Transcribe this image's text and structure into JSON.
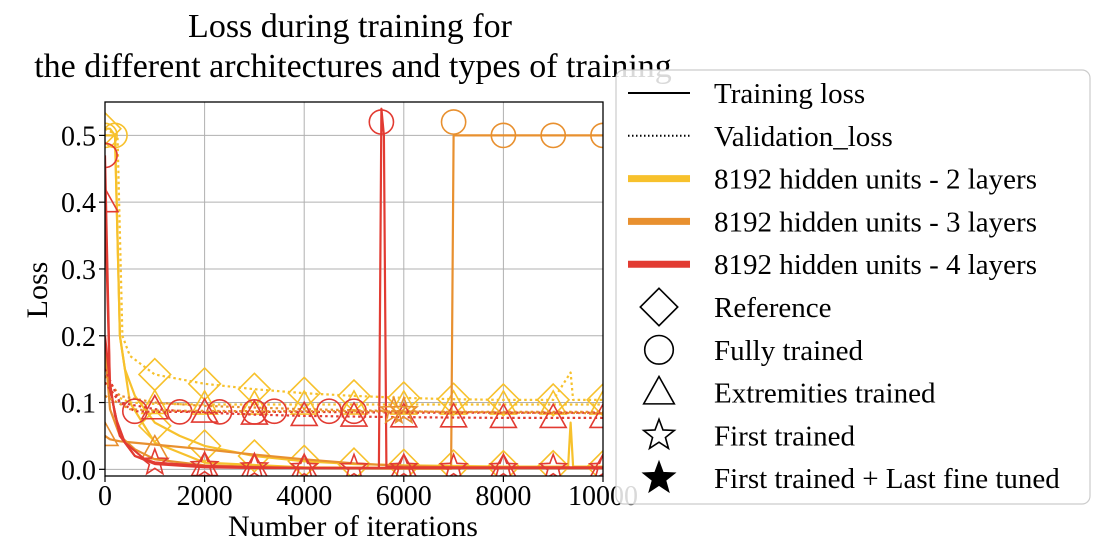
{
  "chart_data": {
    "type": "line",
    "title_line1": "Loss during training for",
    "title_line2": "the different architectures and types of training",
    "xlabel": "Number of iterations",
    "ylabel": "Loss",
    "xlim": [
      0,
      10000
    ],
    "ylim": [
      -0.01,
      0.55
    ],
    "x_ticks": [
      0,
      2000,
      4000,
      6000,
      8000,
      10000
    ],
    "x_tick_labels": [
      "0",
      "2000",
      "4000",
      "6000",
      "8000",
      "10000"
    ],
    "y_ticks": [
      0.0,
      0.1,
      0.2,
      0.3,
      0.4,
      0.5
    ],
    "y_tick_labels": [
      "0.0",
      "0.1",
      "0.2",
      "0.3",
      "0.4",
      "0.5"
    ],
    "grid": true,
    "legend_placement": "outside-right",
    "colors": {
      "2_layers": "#f7c12c",
      "3_layers": "#e8902f",
      "4_layers": "#e23b32"
    },
    "legend": [
      {
        "label": "Training loss",
        "kind": "line",
        "dash": "solid",
        "color": "#000000"
      },
      {
        "label": "Validation_loss",
        "kind": "line",
        "dash": "dotted",
        "color": "#000000"
      },
      {
        "label": "8192 hidden units - 2 layers",
        "kind": "thick",
        "color": "#f7c12c"
      },
      {
        "label": "8192 hidden units - 3 layers",
        "kind": "thick",
        "color": "#e8902f"
      },
      {
        "label": "8192 hidden units - 4 layers",
        "kind": "thick",
        "color": "#e23b32"
      },
      {
        "label": "Reference",
        "kind": "marker",
        "marker": "diamond"
      },
      {
        "label": "Fully trained",
        "kind": "marker",
        "marker": "circle"
      },
      {
        "label": "Extremities trained",
        "kind": "marker",
        "marker": "triangle"
      },
      {
        "label": "First trained",
        "kind": "marker",
        "marker": "star-open"
      },
      {
        "label": "First trained + Last fine tuned",
        "kind": "marker",
        "marker": "star-filled"
      }
    ],
    "series": [
      {
        "color_key": "2_layers",
        "marker": "diamond",
        "dash": "solid",
        "x": [
          0,
          100,
          200,
          300,
          400,
          600,
          1000,
          1500,
          2000,
          3000,
          4000,
          5000,
          6000,
          7000,
          8000,
          9000,
          9300,
          9350,
          9400,
          10000
        ],
        "y": [
          0.51,
          0.51,
          0.5,
          0.2,
          0.15,
          0.11,
          0.07,
          0.05,
          0.035,
          0.02,
          0.012,
          0.008,
          0.006,
          0.005,
          0.004,
          0.004,
          0.004,
          0.07,
          0.004,
          0.004
        ],
        "marker_x": [
          0,
          1000,
          2000,
          3000,
          4000,
          5000,
          6000,
          7000,
          8000,
          9000,
          10000
        ],
        "marker_y": [
          0.51,
          0.065,
          0.035,
          0.02,
          0.012,
          0.008,
          0.006,
          0.005,
          0.004,
          0.004,
          0.004
        ]
      },
      {
        "color_key": "2_layers",
        "marker": "diamond",
        "dash": "dotted",
        "x": [
          0,
          250,
          350,
          500,
          1000,
          2000,
          3000,
          4000,
          5000,
          6000,
          7000,
          8000,
          9000,
          9350,
          9400,
          10000
        ],
        "y": [
          0.51,
          0.5,
          0.2,
          0.17,
          0.142,
          0.128,
          0.12,
          0.114,
          0.11,
          0.107,
          0.105,
          0.104,
          0.104,
          0.145,
          0.104,
          0.104
        ],
        "marker_x": [
          1000,
          2000,
          3000,
          4000,
          5000,
          6000,
          7000,
          8000,
          9000,
          10000
        ],
        "marker_y": [
          0.142,
          0.128,
          0.12,
          0.114,
          0.11,
          0.107,
          0.105,
          0.104,
          0.104,
          0.104
        ]
      },
      {
        "color_key": "2_layers",
        "marker": "circle",
        "dash": "solid",
        "x": [
          0,
          100,
          200,
          300,
          500,
          1000,
          2000,
          4000,
          6000,
          10000
        ],
        "y": [
          0.5,
          0.5,
          0.5,
          0.2,
          0.1,
          0.04,
          0.01,
          0.003,
          0.002,
          0.002
        ],
        "marker_x": [
          0,
          200
        ],
        "marker_y": [
          0.5,
          0.5
        ]
      },
      {
        "color_key": "2_layers",
        "marker": "triangle",
        "dash": "dotted",
        "x": [
          0,
          200,
          500,
          1000,
          2000,
          4000,
          6000,
          8000,
          10000
        ],
        "y": [
          0.13,
          0.11,
          0.1,
          0.098,
          0.097,
          0.097,
          0.097,
          0.097,
          0.097
        ],
        "marker_x": [
          1000,
          2000,
          3000,
          4000,
          5000,
          6000,
          7000,
          8000,
          9000,
          10000
        ],
        "marker_y": [
          0.098,
          0.097,
          0.097,
          0.097,
          0.097,
          0.097,
          0.097,
          0.097,
          0.097,
          0.097
        ]
      },
      {
        "color_key": "3_layers",
        "marker": "triangle",
        "dash": "solid",
        "x": [
          0,
          100,
          300,
          1000,
          2000,
          3000,
          4000,
          5000,
          6000,
          7000,
          8000,
          9000,
          10000
        ],
        "y": [
          0.05,
          0.045,
          0.042,
          0.037,
          0.03,
          0.022,
          0.015,
          0.009,
          0.005,
          0.003,
          0.002,
          0.002,
          0.002
        ],
        "marker_x": [
          0,
          1000
        ],
        "marker_y": [
          0.05,
          0.03
        ]
      },
      {
        "color_key": "3_layers",
        "marker": "circle",
        "dash": "solid",
        "x": [
          0,
          100,
          300,
          600,
          1000,
          2000,
          4000,
          6000,
          6950,
          7000,
          7050,
          8000,
          9000,
          10000
        ],
        "y": [
          0.18,
          0.09,
          0.05,
          0.03,
          0.015,
          0.006,
          0.002,
          0.001,
          0.001,
          0.5,
          0.5,
          0.5,
          0.5,
          0.5
        ],
        "marker_x": [
          7000,
          8000,
          9000,
          10000
        ],
        "marker_y": [
          0.52,
          0.5,
          0.5,
          0.5
        ]
      },
      {
        "color_key": "3_layers",
        "marker": "none",
        "dash": "dotted",
        "x": [
          0,
          300,
          1000,
          2000,
          4000,
          6000,
          8000,
          10000
        ],
        "y": [
          0.14,
          0.11,
          0.1,
          0.095,
          0.09,
          0.087,
          0.085,
          0.084
        ],
        "marker_x": [],
        "marker_y": []
      },
      {
        "color_key": "4_layers",
        "marker": "circle",
        "dash": "solid",
        "x": [
          0,
          100,
          300,
          600,
          1000,
          2000,
          3000,
          4000,
          5000,
          5500,
          5550,
          5600,
          5650,
          6000,
          7000,
          8000,
          10000
        ],
        "y": [
          0.47,
          0.12,
          0.05,
          0.02,
          0.008,
          0.003,
          0.002,
          0.002,
          0.002,
          0.002,
          0.54,
          0.5,
          0.004,
          0.003,
          0.003,
          0.003,
          0.003
        ],
        "marker_x": [
          0,
          5550
        ],
        "marker_y": [
          0.47,
          0.52
        ]
      },
      {
        "color_key": "4_layers",
        "marker": "circle",
        "dash": "dotted",
        "x": [
          0,
          300,
          600,
          1000,
          2000,
          4000,
          6000,
          8000,
          10000
        ],
        "y": [
          0.15,
          0.1,
          0.087,
          0.086,
          0.086,
          0.086,
          0.085,
          0.085,
          0.085
        ],
        "marker_x": [
          600,
          1500,
          2300,
          3000,
          3400,
          4500,
          5000
        ],
        "marker_y": [
          0.087,
          0.086,
          0.086,
          0.086,
          0.087,
          0.087,
          0.087
        ]
      },
      {
        "color_key": "4_layers",
        "marker": "triangle",
        "dash": "solid",
        "x": [
          0,
          100,
          300,
          600,
          1000,
          2000,
          3000,
          4000,
          6000,
          10000
        ],
        "y": [
          0.4,
          0.12,
          0.05,
          0.02,
          0.01,
          0.004,
          0.003,
          0.002,
          0.002,
          0.002
        ],
        "marker_x": [
          0,
          2000,
          3000,
          4000,
          6000,
          8000,
          10000
        ],
        "marker_y": [
          0.4,
          0.005,
          0.003,
          0.002,
          0.002,
          0.002,
          0.002
        ]
      },
      {
        "color_key": "4_layers",
        "marker": "triangle",
        "dash": "dotted",
        "x": [
          0,
          300,
          1000,
          2000,
          3000,
          4000,
          6000,
          8000,
          10000
        ],
        "y": [
          0.13,
          0.1,
          0.09,
          0.085,
          0.082,
          0.08,
          0.078,
          0.077,
          0.077
        ],
        "marker_x": [
          1000,
          2000,
          3000,
          4000,
          5000,
          6000,
          7000,
          8000,
          9000,
          10000
        ],
        "marker_y": [
          0.09,
          0.085,
          0.082,
          0.08,
          0.079,
          0.078,
          0.078,
          0.077,
          0.077,
          0.077
        ]
      },
      {
        "color_key": "4_layers",
        "marker": "star-open",
        "dash": "solid",
        "x": [
          0,
          100,
          200,
          400,
          800,
          1000,
          2000,
          3000,
          4000,
          10000
        ],
        "y": [
          0.2,
          0.13,
          0.08,
          0.04,
          0.015,
          0.01,
          0.005,
          0.003,
          0.002,
          0.002
        ],
        "marker_x": [
          1000,
          2000,
          3000,
          4000,
          5000,
          6000,
          7000,
          8000,
          9000,
          10000
        ],
        "marker_y": [
          0.01,
          0.005,
          0.003,
          0.002,
          0.002,
          0.002,
          0.002,
          0.002,
          0.002,
          0.002
        ]
      },
      {
        "color_key": "3_layers",
        "marker": "star-open",
        "dash": "dotted",
        "x": [
          0,
          500,
          1000,
          3000,
          5000,
          7000,
          10000
        ],
        "y": [
          0.11,
          0.09,
          0.088,
          0.087,
          0.087,
          0.086,
          0.086
        ],
        "marker_x": [
          5800,
          6000
        ],
        "marker_y": [
          0.087,
          0.087
        ]
      }
    ]
  }
}
